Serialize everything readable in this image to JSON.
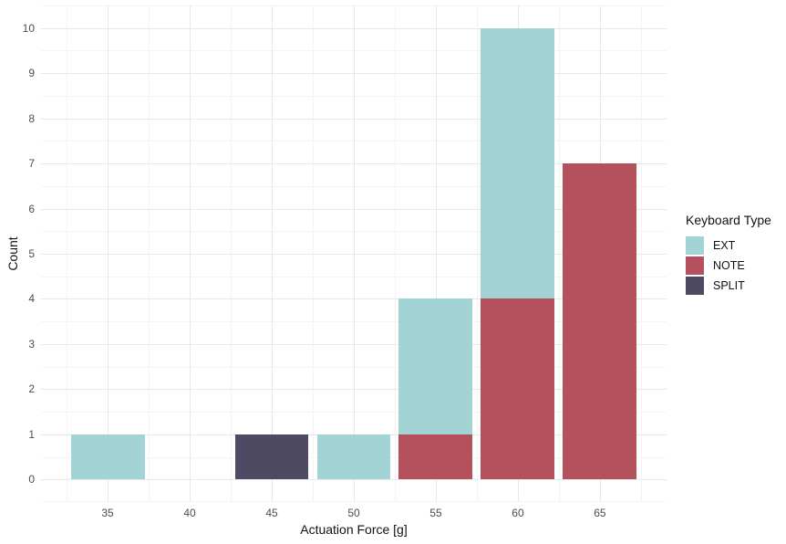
{
  "chart_data": {
    "type": "bar",
    "stacked": true,
    "title": "",
    "xlabel": "Actuation Force [g]",
    "ylabel": "Count",
    "x": [
      35,
      45,
      50,
      55,
      60,
      65
    ],
    "series": [
      {
        "name": "EXT",
        "color": "#a2d4d5",
        "values": [
          1,
          0,
          1,
          3,
          6,
          0
        ]
      },
      {
        "name": "NOTE",
        "color": "#b5515c",
        "values": [
          0,
          0,
          0,
          1,
          4,
          7
        ]
      },
      {
        "name": "SPLIT",
        "color": "#4f4a63",
        "values": [
          0,
          1,
          0,
          0,
          0,
          0
        ]
      }
    ],
    "stack_order_bottom_to_top": [
      "SPLIT",
      "NOTE",
      "EXT"
    ],
    "bar_width": 4.5,
    "x_ticks": [
      35,
      40,
      45,
      50,
      55,
      60,
      65
    ],
    "x_minor_ticks": [
      32.5,
      37.5,
      42.5,
      47.5,
      52.5,
      57.5,
      62.5,
      67.5
    ],
    "y_ticks": [
      0,
      1,
      2,
      3,
      4,
      5,
      6,
      7,
      8,
      9,
      10
    ],
    "y_minor_ticks": [
      -0.5,
      0.5,
      1.5,
      2.5,
      3.5,
      4.5,
      5.5,
      6.5,
      7.5,
      8.5,
      9.5,
      10.5
    ],
    "xlim": [
      30.94,
      69.06
    ],
    "ylim": [
      -0.5,
      10.5
    ],
    "grid": {
      "major_color": "#e8e8e8",
      "minor_color": "#f4f4f4"
    },
    "background": "#ffffff",
    "legend": {
      "title": "Keyboard Type",
      "position": "right",
      "entries": [
        {
          "label": "EXT",
          "color": "#a2d4d5"
        },
        {
          "label": "NOTE",
          "color": "#b5515c"
        },
        {
          "label": "SPLIT",
          "color": "#4f4a63"
        }
      ]
    }
  }
}
